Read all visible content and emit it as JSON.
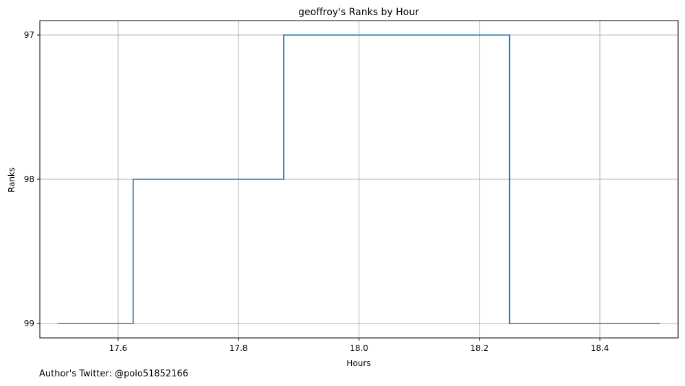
{
  "chart_data": {
    "type": "line",
    "drawstyle": "steps-post",
    "title": "geoffroy's Ranks by Hour",
    "xlabel": "Hours",
    "ylabel": "Ranks",
    "xlim": [
      17.47,
      18.53
    ],
    "ylim": [
      99.1,
      96.9
    ],
    "y_inverted": true,
    "grid": true,
    "x_ticks": [
      17.6,
      17.8,
      18.0,
      18.2,
      18.4
    ],
    "x_tick_labels": [
      "17.6",
      "17.8",
      "18.0",
      "18.2",
      "18.4"
    ],
    "y_ticks": [
      97,
      98,
      99
    ],
    "y_tick_labels": [
      "97",
      "98",
      "99"
    ],
    "series": [
      {
        "x": [
          17.5,
          17.625,
          17.875,
          18.25,
          18.5
        ],
        "y": [
          99,
          98,
          97,
          99,
          99
        ],
        "color": "#1f77b4"
      }
    ]
  },
  "footnote": "Author's Twitter: @polo51852166"
}
